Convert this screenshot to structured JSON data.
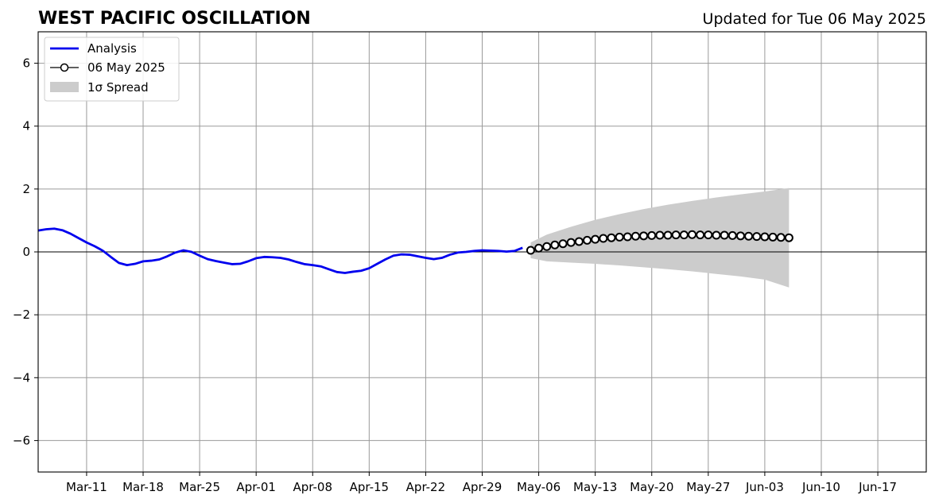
{
  "chart_data": {
    "type": "line",
    "title": "WEST PACIFIC OSCILLATION",
    "subtitle": "Updated for Tue 06 May 2025",
    "xlabel": "",
    "ylabel": "",
    "x_range": [
      "2025-03-05",
      "2025-06-23"
    ],
    "ylim": [
      -7,
      7
    ],
    "yticks": [
      -6,
      -4,
      -2,
      0,
      2,
      4,
      6
    ],
    "ytick_labels": [
      "−6",
      "−4",
      "−2",
      "0",
      "2",
      "4",
      "6"
    ],
    "xticks": [
      "2025-03-11",
      "2025-03-18",
      "2025-03-25",
      "2025-04-01",
      "2025-04-08",
      "2025-04-15",
      "2025-04-22",
      "2025-04-29",
      "2025-05-06",
      "2025-05-13",
      "2025-05-20",
      "2025-05-27",
      "2025-06-03",
      "2025-06-10",
      "2025-06-17"
    ],
    "xtick_labels": [
      "Mar-11",
      "Mar-18",
      "Mar-25",
      "Apr-01",
      "Apr-08",
      "Apr-15",
      "Apr-22",
      "Apr-29",
      "May-06",
      "May-13",
      "May-20",
      "May-27",
      "Jun-03",
      "Jun-10",
      "Jun-17"
    ],
    "grid": true,
    "zero_line": 0,
    "legend_position": "top-left",
    "series": [
      {
        "name": "Analysis",
        "style": "line",
        "color": "#0000ee",
        "points": [
          [
            "2025-03-05",
            0.68
          ],
          [
            "2025-03-06",
            0.72
          ],
          [
            "2025-03-07",
            0.74
          ],
          [
            "2025-03-08",
            0.69
          ],
          [
            "2025-03-09",
            0.58
          ],
          [
            "2025-03-10",
            0.44
          ],
          [
            "2025-03-11",
            0.3
          ],
          [
            "2025-03-12",
            0.18
          ],
          [
            "2025-03-13",
            0.04
          ],
          [
            "2025-03-14",
            -0.16
          ],
          [
            "2025-03-15",
            -0.35
          ],
          [
            "2025-03-16",
            -0.42
          ],
          [
            "2025-03-17",
            -0.38
          ],
          [
            "2025-03-18",
            -0.3
          ],
          [
            "2025-03-19",
            -0.28
          ],
          [
            "2025-03-20",
            -0.24
          ],
          [
            "2025-03-21",
            -0.14
          ],
          [
            "2025-03-22",
            -0.02
          ],
          [
            "2025-03-23",
            0.05
          ],
          [
            "2025-03-24",
            0.0
          ],
          [
            "2025-03-25",
            -0.12
          ],
          [
            "2025-03-26",
            -0.23
          ],
          [
            "2025-03-27",
            -0.29
          ],
          [
            "2025-03-28",
            -0.34
          ],
          [
            "2025-03-29",
            -0.39
          ],
          [
            "2025-03-30",
            -0.38
          ],
          [
            "2025-03-31",
            -0.3
          ],
          [
            "2025-04-01",
            -0.2
          ],
          [
            "2025-04-02",
            -0.16
          ],
          [
            "2025-04-03",
            -0.17
          ],
          [
            "2025-04-04",
            -0.19
          ],
          [
            "2025-04-05",
            -0.24
          ],
          [
            "2025-04-06",
            -0.32
          ],
          [
            "2025-04-07",
            -0.39
          ],
          [
            "2025-04-08",
            -0.42
          ],
          [
            "2025-04-09",
            -0.46
          ],
          [
            "2025-04-10",
            -0.55
          ],
          [
            "2025-04-11",
            -0.64
          ],
          [
            "2025-04-12",
            -0.67
          ],
          [
            "2025-04-13",
            -0.63
          ],
          [
            "2025-04-14",
            -0.6
          ],
          [
            "2025-04-15",
            -0.52
          ],
          [
            "2025-04-16",
            -0.38
          ],
          [
            "2025-04-17",
            -0.24
          ],
          [
            "2025-04-18",
            -0.12
          ],
          [
            "2025-04-19",
            -0.08
          ],
          [
            "2025-04-20",
            -0.09
          ],
          [
            "2025-04-21",
            -0.14
          ],
          [
            "2025-04-22",
            -0.19
          ],
          [
            "2025-04-23",
            -0.23
          ],
          [
            "2025-04-24",
            -0.19
          ],
          [
            "2025-04-25",
            -0.09
          ],
          [
            "2025-04-26",
            -0.02
          ],
          [
            "2025-04-27",
            0.0
          ],
          [
            "2025-04-28",
            0.03
          ],
          [
            "2025-04-29",
            0.05
          ],
          [
            "2025-04-30",
            0.04
          ],
          [
            "2025-05-01",
            0.03
          ],
          [
            "2025-05-02",
            0.01
          ],
          [
            "2025-05-03",
            0.03
          ],
          [
            "2025-05-04",
            0.13
          ]
        ]
      },
      {
        "name": "06 May 2025",
        "style": "line-markers",
        "color": "#000000",
        "marker_fill": "#ffffff",
        "points": [
          [
            "2025-05-05",
            0.05
          ],
          [
            "2025-05-06",
            0.12
          ],
          [
            "2025-05-07",
            0.17
          ],
          [
            "2025-05-08",
            0.22
          ],
          [
            "2025-05-09",
            0.26
          ],
          [
            "2025-05-10",
            0.3
          ],
          [
            "2025-05-11",
            0.33
          ],
          [
            "2025-05-12",
            0.37
          ],
          [
            "2025-05-13",
            0.4
          ],
          [
            "2025-05-14",
            0.43
          ],
          [
            "2025-05-15",
            0.45
          ],
          [
            "2025-05-16",
            0.47
          ],
          [
            "2025-05-17",
            0.48
          ],
          [
            "2025-05-18",
            0.5
          ],
          [
            "2025-05-19",
            0.51
          ],
          [
            "2025-05-20",
            0.52
          ],
          [
            "2025-05-21",
            0.53
          ],
          [
            "2025-05-22",
            0.53
          ],
          [
            "2025-05-23",
            0.54
          ],
          [
            "2025-05-24",
            0.54
          ],
          [
            "2025-05-25",
            0.55
          ],
          [
            "2025-05-26",
            0.54
          ],
          [
            "2025-05-27",
            0.54
          ],
          [
            "2025-05-28",
            0.53
          ],
          [
            "2025-05-29",
            0.53
          ],
          [
            "2025-05-30",
            0.52
          ],
          [
            "2025-05-31",
            0.51
          ],
          [
            "2025-06-01",
            0.5
          ],
          [
            "2025-06-02",
            0.49
          ],
          [
            "2025-06-03",
            0.48
          ],
          [
            "2025-06-04",
            0.47
          ],
          [
            "2025-06-05",
            0.46
          ],
          [
            "2025-06-06",
            0.45
          ]
        ]
      }
    ],
    "spread": {
      "name": "1σ Spread",
      "color": "#cccccc",
      "points": [
        [
          "2025-05-05",
          0.3,
          -0.2
        ],
        [
          "2025-05-07",
          0.55,
          -0.3
        ],
        [
          "2025-05-10",
          0.8,
          -0.34
        ],
        [
          "2025-05-13",
          1.02,
          -0.38
        ],
        [
          "2025-05-16",
          1.2,
          -0.43
        ],
        [
          "2025-05-19",
          1.36,
          -0.49
        ],
        [
          "2025-05-22",
          1.5,
          -0.55
        ],
        [
          "2025-05-25",
          1.62,
          -0.62
        ],
        [
          "2025-05-28",
          1.73,
          -0.7
        ],
        [
          "2025-05-31",
          1.83,
          -0.78
        ],
        [
          "2025-06-03",
          1.92,
          -0.88
        ],
        [
          "2025-06-06",
          2.03,
          -1.13
        ]
      ]
    }
  }
}
